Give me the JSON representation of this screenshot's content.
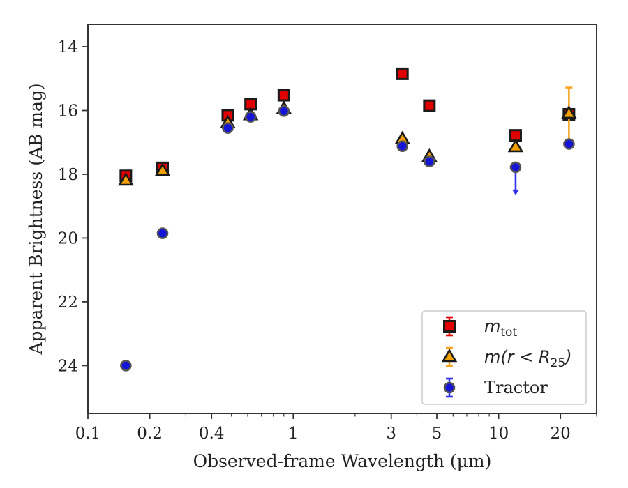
{
  "chart_data": {
    "type": "scatter",
    "title": "",
    "xlabel": "Observed-frame Wavelength (μm)",
    "ylabel": "Apparent Brightness (AB mag)",
    "xscale": "log",
    "xlim": [
      0.1,
      30
    ],
    "ylim": [
      25.5,
      13.3
    ],
    "y_inverted": true,
    "grid": false,
    "legend_position": "lower-right",
    "x_ticks": [
      {
        "value": 0.1,
        "label": "0.1"
      },
      {
        "value": 0.2,
        "label": "0.2"
      },
      {
        "value": 0.4,
        "label": "0.4"
      },
      {
        "value": 1,
        "label": "1"
      },
      {
        "value": 3,
        "label": "3"
      },
      {
        "value": 5,
        "label": "5"
      },
      {
        "value": 10,
        "label": "10"
      },
      {
        "value": 20,
        "label": "20"
      }
    ],
    "y_ticks": [
      {
        "value": 14,
        "label": "14"
      },
      {
        "value": 16,
        "label": "16"
      },
      {
        "value": 18,
        "label": "18"
      },
      {
        "value": 20,
        "label": "20"
      },
      {
        "value": 22,
        "label": "22"
      },
      {
        "value": 24,
        "label": "24"
      }
    ],
    "series": [
      {
        "name": "m_tot",
        "legend_math": "m",
        "legend_sub": "tot",
        "marker": "square",
        "color": "#e00000",
        "edge": "#1a1a1a",
        "errcolor": "#e00000",
        "points": [
          {
            "x": 0.153,
            "y": 18.05,
            "err": 0.05
          },
          {
            "x": 0.231,
            "y": 17.8,
            "err": 0.05
          },
          {
            "x": 0.48,
            "y": 16.15,
            "err": 0.03
          },
          {
            "x": 0.62,
            "y": 15.8,
            "err": 0.03
          },
          {
            "x": 0.9,
            "y": 15.52,
            "err": 0.03
          },
          {
            "x": 3.4,
            "y": 14.85,
            "err": 0.03
          },
          {
            "x": 4.6,
            "y": 15.85,
            "err": 0.03
          },
          {
            "x": 12.1,
            "y": 16.78,
            "err": 0.05
          },
          {
            "x": 22.0,
            "y": 16.12,
            "err": 0.05
          }
        ]
      },
      {
        "name": "m(r < R25)",
        "legend_math": "m(r < R",
        "legend_sub": "25",
        "legend_close": ")",
        "marker": "triangle",
        "color": "#f0a000",
        "edge": "#1a1a1a",
        "errcolor": "#f5a623",
        "points": [
          {
            "x": 0.153,
            "y": 18.2,
            "err": 0.05
          },
          {
            "x": 0.231,
            "y": 17.9,
            "err": 0.05
          },
          {
            "x": 0.48,
            "y": 16.4,
            "err": 0.03
          },
          {
            "x": 0.62,
            "y": 16.15,
            "err": 0.03
          },
          {
            "x": 0.9,
            "y": 15.95,
            "err": 0.03
          },
          {
            "x": 3.4,
            "y": 16.9,
            "err": 0.03
          },
          {
            "x": 4.6,
            "y": 17.45,
            "err": 0.03
          },
          {
            "x": 12.1,
            "y": 17.15,
            "err": 0.05
          },
          {
            "x": 22.0,
            "y": 16.1,
            "err": 0.82
          }
        ]
      },
      {
        "name": "Tractor",
        "marker": "circle",
        "color": "#1515d8",
        "edge": "#555555",
        "errcolor": "#3030f0",
        "points": [
          {
            "x": 0.153,
            "y": 24.0,
            "err": 0.05
          },
          {
            "x": 0.231,
            "y": 19.85,
            "err": 0.05
          },
          {
            "x": 0.48,
            "y": 16.55,
            "err": 0.03
          },
          {
            "x": 0.62,
            "y": 16.2,
            "err": 0.03
          },
          {
            "x": 0.9,
            "y": 16.02,
            "err": 0.03
          },
          {
            "x": 3.4,
            "y": 17.12,
            "err": 0.03
          },
          {
            "x": 4.6,
            "y": 17.6,
            "err": 0.03
          },
          {
            "x": 12.1,
            "y": 17.78,
            "err": 0,
            "upper_limit": true
          },
          {
            "x": 22.0,
            "y": 17.05,
            "err": 0.05
          }
        ]
      }
    ]
  }
}
